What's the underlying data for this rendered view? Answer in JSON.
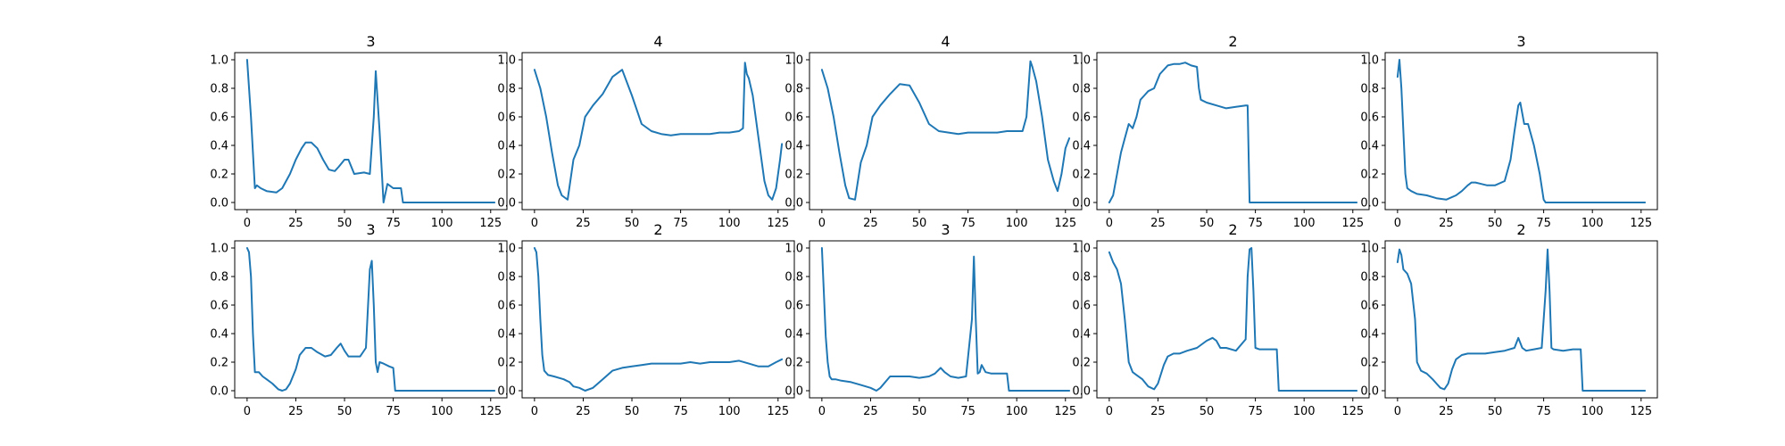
{
  "figure": {
    "background": "#ffffff",
    "line_color": "#1f77b4"
  },
  "chart_data": [
    {
      "type": "line",
      "title": "3",
      "xlim": [
        -6.35,
        133.35
      ],
      "ylim": [
        -0.05,
        1.05
      ],
      "xticks": [
        "0",
        "25",
        "50",
        "75",
        "100",
        "125"
      ],
      "yticks": [
        "0.0",
        "0.2",
        "0.4",
        "0.6",
        "0.8",
        "1.0"
      ],
      "grid": false,
      "series": [
        {
          "x": [
            0,
            2,
            4,
            5,
            7,
            10,
            15,
            18,
            22,
            25,
            28,
            30,
            33,
            36,
            39,
            42,
            45,
            47,
            50,
            52,
            55,
            60,
            63,
            65,
            66,
            68,
            70,
            72,
            75,
            76,
            79,
            80,
            90,
            100,
            110,
            127
          ],
          "y": [
            1.0,
            0.6,
            0.1,
            0.12,
            0.1,
            0.08,
            0.07,
            0.1,
            0.2,
            0.3,
            0.38,
            0.42,
            0.42,
            0.38,
            0.3,
            0.23,
            0.22,
            0.25,
            0.3,
            0.3,
            0.2,
            0.21,
            0.2,
            0.6,
            0.92,
            0.5,
            0.0,
            0.13,
            0.1,
            0.1,
            0.1,
            0.0,
            0.0,
            0.0,
            0.0,
            0.0
          ]
        }
      ]
    },
    {
      "type": "line",
      "title": "4",
      "xlim": [
        -6.35,
        133.35
      ],
      "ylim": [
        -0.05,
        1.05
      ],
      "xticks": [
        "0",
        "25",
        "50",
        "75",
        "100",
        "125"
      ],
      "yticks": [
        "0.0",
        "0.2",
        "0.4",
        "0.6",
        "0.8",
        "1.0"
      ],
      "grid": false,
      "series": [
        {
          "x": [
            0,
            3,
            6,
            9,
            12,
            14,
            17,
            20,
            23,
            26,
            30,
            35,
            40,
            45,
            50,
            55,
            60,
            65,
            70,
            75,
            80,
            85,
            90,
            95,
            100,
            105,
            107,
            108,
            109,
            110,
            112,
            115,
            118,
            120,
            122,
            124,
            126,
            127
          ],
          "y": [
            0.93,
            0.8,
            0.6,
            0.35,
            0.12,
            0.05,
            0.02,
            0.3,
            0.4,
            0.6,
            0.68,
            0.76,
            0.88,
            0.93,
            0.75,
            0.55,
            0.5,
            0.48,
            0.47,
            0.48,
            0.48,
            0.48,
            0.48,
            0.49,
            0.49,
            0.5,
            0.52,
            0.98,
            0.9,
            0.87,
            0.75,
            0.45,
            0.15,
            0.05,
            0.02,
            0.1,
            0.3,
            0.41
          ]
        }
      ]
    },
    {
      "type": "line",
      "title": "4",
      "xlim": [
        -6.35,
        133.35
      ],
      "ylim": [
        -0.05,
        1.05
      ],
      "xticks": [
        "0",
        "25",
        "50",
        "75",
        "100",
        "125"
      ],
      "yticks": [
        "0.0",
        "0.2",
        "0.4",
        "0.6",
        "0.8",
        "1.0"
      ],
      "grid": false,
      "series": [
        {
          "x": [
            0,
            3,
            6,
            9,
            12,
            14,
            17,
            20,
            23,
            26,
            30,
            35,
            40,
            45,
            50,
            55,
            60,
            65,
            70,
            75,
            80,
            85,
            90,
            95,
            100,
            103,
            105,
            107,
            108,
            110,
            113,
            116,
            119,
            121,
            123,
            125,
            127
          ],
          "y": [
            0.93,
            0.8,
            0.6,
            0.35,
            0.12,
            0.03,
            0.02,
            0.28,
            0.4,
            0.6,
            0.68,
            0.76,
            0.83,
            0.82,
            0.7,
            0.55,
            0.5,
            0.49,
            0.48,
            0.49,
            0.49,
            0.49,
            0.49,
            0.5,
            0.5,
            0.5,
            0.6,
            0.99,
            0.95,
            0.85,
            0.6,
            0.3,
            0.15,
            0.08,
            0.2,
            0.38,
            0.45
          ]
        }
      ]
    },
    {
      "type": "line",
      "title": "2",
      "xlim": [
        -6.35,
        133.35
      ],
      "ylim": [
        -0.05,
        1.05
      ],
      "xticks": [
        "0",
        "25",
        "50",
        "75",
        "100",
        "125"
      ],
      "yticks": [
        "0.0",
        "0.2",
        "0.4",
        "0.6",
        "0.8",
        "1.0"
      ],
      "grid": false,
      "series": [
        {
          "x": [
            0,
            2,
            4,
            6,
            8,
            10,
            12,
            14,
            16,
            18,
            20,
            23,
            26,
            30,
            33,
            36,
            39,
            42,
            45,
            46,
            47,
            50,
            55,
            60,
            65,
            70,
            71,
            72,
            80,
            100,
            127
          ],
          "y": [
            0.0,
            0.05,
            0.2,
            0.35,
            0.45,
            0.55,
            0.52,
            0.6,
            0.72,
            0.75,
            0.78,
            0.8,
            0.9,
            0.96,
            0.97,
            0.97,
            0.98,
            0.96,
            0.95,
            0.8,
            0.72,
            0.7,
            0.68,
            0.66,
            0.67,
            0.68,
            0.68,
            0.0,
            0.0,
            0.0,
            0.0
          ]
        }
      ]
    },
    {
      "type": "line",
      "title": "3",
      "xlim": [
        -6.35,
        133.35
      ],
      "ylim": [
        -0.05,
        1.05
      ],
      "xticks": [
        "0",
        "25",
        "50",
        "75",
        "100",
        "125"
      ],
      "yticks": [
        "0.0",
        "0.2",
        "0.4",
        "0.6",
        "0.8",
        "1.0"
      ],
      "grid": false,
      "series": [
        {
          "x": [
            0,
            1,
            2,
            3,
            4,
            5,
            7,
            10,
            15,
            20,
            25,
            30,
            33,
            36,
            38,
            40,
            43,
            46,
            50,
            55,
            58,
            60,
            62,
            63,
            65,
            67,
            70,
            73,
            75,
            76,
            80,
            90,
            110,
            127
          ],
          "y": [
            0.88,
            1.0,
            0.8,
            0.5,
            0.2,
            0.1,
            0.08,
            0.06,
            0.05,
            0.03,
            0.02,
            0.05,
            0.08,
            0.12,
            0.14,
            0.14,
            0.13,
            0.12,
            0.12,
            0.15,
            0.3,
            0.5,
            0.68,
            0.7,
            0.55,
            0.55,
            0.4,
            0.2,
            0.02,
            0.0,
            0.0,
            0.0,
            0.0,
            0.0
          ]
        }
      ]
    },
    {
      "type": "line",
      "title": "3",
      "xlim": [
        -6.35,
        133.35
      ],
      "ylim": [
        -0.05,
        1.05
      ],
      "xticks": [
        "0",
        "25",
        "50",
        "75",
        "100",
        "125"
      ],
      "yticks": [
        "0.0",
        "0.2",
        "0.4",
        "0.6",
        "0.8",
        "1.0"
      ],
      "grid": false,
      "series": [
        {
          "x": [
            0,
            1,
            2,
            3,
            4,
            6,
            8,
            10,
            13,
            16,
            18,
            20,
            22,
            25,
            27,
            30,
            33,
            36,
            40,
            43,
            46,
            48,
            50,
            52,
            55,
            58,
            61,
            63,
            64,
            65,
            66,
            67,
            68,
            70,
            73,
            75,
            76,
            77,
            80,
            100,
            127
          ],
          "y": [
            1.0,
            0.97,
            0.8,
            0.4,
            0.13,
            0.13,
            0.1,
            0.08,
            0.05,
            0.01,
            0.0,
            0.01,
            0.05,
            0.15,
            0.25,
            0.3,
            0.3,
            0.27,
            0.24,
            0.25,
            0.3,
            0.33,
            0.28,
            0.24,
            0.24,
            0.24,
            0.3,
            0.85,
            0.91,
            0.6,
            0.2,
            0.13,
            0.2,
            0.19,
            0.17,
            0.16,
            0.0,
            0.0,
            0.0,
            0.0,
            0.0
          ]
        }
      ]
    },
    {
      "type": "line",
      "title": "2",
      "xlim": [
        -6.35,
        133.35
      ],
      "ylim": [
        -0.05,
        1.05
      ],
      "xticks": [
        "0",
        "25",
        "50",
        "75",
        "100",
        "125"
      ],
      "yticks": [
        "0.0",
        "0.2",
        "0.4",
        "0.6",
        "0.8",
        "1.0"
      ],
      "grid": false,
      "series": [
        {
          "x": [
            0,
            1,
            2,
            3,
            4,
            5,
            7,
            10,
            15,
            18,
            20,
            23,
            26,
            30,
            35,
            40,
            45,
            50,
            55,
            60,
            65,
            70,
            75,
            80,
            85,
            90,
            95,
            100,
            105,
            110,
            115,
            120,
            124,
            127
          ],
          "y": [
            1.0,
            0.97,
            0.8,
            0.5,
            0.25,
            0.14,
            0.11,
            0.1,
            0.08,
            0.06,
            0.03,
            0.02,
            0.0,
            0.02,
            0.08,
            0.14,
            0.16,
            0.17,
            0.18,
            0.19,
            0.19,
            0.19,
            0.19,
            0.2,
            0.19,
            0.2,
            0.2,
            0.2,
            0.21,
            0.19,
            0.17,
            0.17,
            0.2,
            0.22
          ]
        }
      ]
    },
    {
      "type": "line",
      "title": "3",
      "xlim": [
        -6.35,
        133.35
      ],
      "ylim": [
        -0.05,
        1.05
      ],
      "xticks": [
        "0",
        "25",
        "50",
        "75",
        "100",
        "125"
      ],
      "yticks": [
        "0.0",
        "0.2",
        "0.4",
        "0.6",
        "0.8",
        "1.0"
      ],
      "grid": false,
      "series": [
        {
          "x": [
            0,
            1,
            2,
            3,
            4,
            5,
            7,
            10,
            15,
            20,
            25,
            28,
            30,
            35,
            40,
            45,
            50,
            55,
            58,
            61,
            63,
            66,
            70,
            74,
            77,
            78,
            79,
            80,
            81,
            82,
            84,
            87,
            90,
            95,
            96,
            100,
            110,
            127
          ],
          "y": [
            1.0,
            0.7,
            0.38,
            0.2,
            0.1,
            0.08,
            0.08,
            0.07,
            0.06,
            0.04,
            0.02,
            0.0,
            0.02,
            0.1,
            0.1,
            0.1,
            0.09,
            0.1,
            0.12,
            0.16,
            0.13,
            0.1,
            0.09,
            0.1,
            0.5,
            0.94,
            0.5,
            0.12,
            0.13,
            0.18,
            0.13,
            0.12,
            0.12,
            0.12,
            0.0,
            0.0,
            0.0,
            0.0
          ]
        }
      ]
    },
    {
      "type": "line",
      "title": "2",
      "xlim": [
        -6.35,
        133.35
      ],
      "ylim": [
        -0.05,
        1.05
      ],
      "xticks": [
        "0",
        "25",
        "50",
        "75",
        "100",
        "125"
      ],
      "yticks": [
        "0.0",
        "0.2",
        "0.4",
        "0.6",
        "0.8",
        "1.0"
      ],
      "grid": false,
      "series": [
        {
          "x": [
            0,
            2,
            4,
            6,
            8,
            10,
            12,
            14,
            17,
            20,
            23,
            25,
            28,
            30,
            33,
            36,
            40,
            45,
            50,
            53,
            55,
            57,
            60,
            65,
            70,
            71,
            72,
            73,
            74,
            75,
            77,
            80,
            85,
            86,
            87,
            90,
            100,
            127
          ],
          "y": [
            0.97,
            0.9,
            0.85,
            0.75,
            0.5,
            0.2,
            0.13,
            0.11,
            0.08,
            0.03,
            0.01,
            0.05,
            0.18,
            0.24,
            0.26,
            0.26,
            0.28,
            0.3,
            0.35,
            0.37,
            0.35,
            0.3,
            0.3,
            0.28,
            0.36,
            0.8,
            0.99,
            1.0,
            0.7,
            0.3,
            0.29,
            0.29,
            0.29,
            0.29,
            0.0,
            0.0,
            0.0,
            0.0
          ]
        }
      ]
    },
    {
      "type": "line",
      "title": "2",
      "xlim": [
        -6.35,
        133.35
      ],
      "ylim": [
        -0.05,
        1.05
      ],
      "xticks": [
        "0",
        "25",
        "50",
        "75",
        "100",
        "125"
      ],
      "yticks": [
        "0.0",
        "0.2",
        "0.4",
        "0.6",
        "0.8",
        "1.0"
      ],
      "grid": false,
      "series": [
        {
          "x": [
            0,
            1,
            2,
            3,
            5,
            7,
            9,
            10,
            12,
            15,
            18,
            20,
            22,
            24,
            26,
            28,
            30,
            33,
            36,
            40,
            45,
            50,
            55,
            60,
            62,
            64,
            66,
            70,
            74,
            76,
            77,
            78,
            79,
            80,
            85,
            90,
            94,
            95,
            100,
            127
          ],
          "y": [
            0.9,
            0.99,
            0.95,
            0.85,
            0.82,
            0.75,
            0.5,
            0.2,
            0.14,
            0.12,
            0.08,
            0.05,
            0.02,
            0.01,
            0.05,
            0.15,
            0.22,
            0.25,
            0.26,
            0.26,
            0.26,
            0.27,
            0.28,
            0.3,
            0.37,
            0.3,
            0.28,
            0.29,
            0.3,
            0.7,
            0.99,
            0.7,
            0.3,
            0.29,
            0.28,
            0.29,
            0.29,
            0.0,
            0.0,
            0.0
          ]
        }
      ]
    }
  ]
}
